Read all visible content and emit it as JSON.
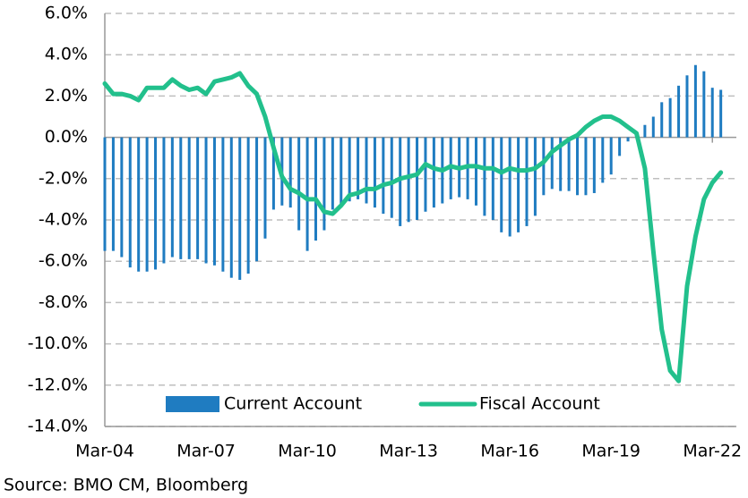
{
  "chart_data": {
    "type": "bar-line",
    "categories": [
      "Mar-04",
      null,
      null,
      null,
      null,
      null,
      null,
      null,
      null,
      null,
      null,
      null,
      "Mar-07",
      null,
      null,
      null,
      null,
      null,
      null,
      null,
      null,
      null,
      null,
      null,
      "Mar-10",
      null,
      null,
      null,
      null,
      null,
      null,
      null,
      null,
      null,
      null,
      null,
      "Mar-13",
      null,
      null,
      null,
      null,
      null,
      null,
      null,
      null,
      null,
      null,
      null,
      "Mar-16",
      null,
      null,
      null,
      null,
      null,
      null,
      null,
      null,
      null,
      null,
      null,
      "Mar-19",
      null,
      null,
      null,
      null,
      null,
      null,
      null,
      null,
      null,
      null,
      null,
      "Mar-22",
      null
    ],
    "series": [
      {
        "name": "Current Account",
        "type": "bar",
        "color": "#1f7cc1",
        "values": [
          -5.5,
          -5.5,
          -5.8,
          -6.3,
          -6.5,
          -6.5,
          -6.4,
          -6.1,
          -5.8,
          -5.9,
          -5.9,
          -5.9,
          -6.1,
          -6.2,
          -6.5,
          -6.8,
          -6.9,
          -6.6,
          -6.0,
          -4.9,
          -3.5,
          -3.3,
          -3.4,
          -4.5,
          -5.5,
          -5.0,
          -4.5,
          -3.5,
          -3.3,
          -3.1,
          -3.0,
          -3.2,
          -3.4,
          -3.7,
          -3.9,
          -4.3,
          -4.1,
          -4.0,
          -3.6,
          -3.4,
          -3.2,
          -3.0,
          -2.9,
          -3.0,
          -3.3,
          -3.8,
          -4.0,
          -4.6,
          -4.8,
          -4.6,
          -4.3,
          -3.8,
          -2.8,
          -2.5,
          -2.6,
          -2.6,
          -2.8,
          -2.8,
          -2.7,
          -2.2,
          -1.8,
          -0.9,
          -0.2,
          0.1,
          0.6,
          1.0,
          1.7,
          1.9,
          2.5,
          3.0,
          3.5,
          3.2,
          2.4,
          2.3
        ]
      },
      {
        "name": "Fiscal Account",
        "type": "line",
        "color": "#22c08c",
        "values": [
          2.6,
          2.1,
          2.1,
          2.0,
          1.8,
          2.4,
          2.4,
          2.4,
          2.8,
          2.5,
          2.3,
          2.4,
          2.1,
          2.7,
          2.8,
          2.9,
          3.1,
          2.5,
          2.1,
          1.0,
          -0.5,
          -1.9,
          -2.5,
          -2.7,
          -3.0,
          -3.0,
          -3.6,
          -3.7,
          -3.3,
          -2.8,
          -2.7,
          -2.5,
          -2.5,
          -2.3,
          -2.2,
          -2.0,
          -1.9,
          -1.8,
          -1.3,
          -1.5,
          -1.6,
          -1.4,
          -1.5,
          -1.4,
          -1.4,
          -1.5,
          -1.5,
          -1.7,
          -1.5,
          -1.6,
          -1.6,
          -1.5,
          -1.2,
          -0.7,
          -0.4,
          -0.1,
          0.1,
          0.5,
          0.8,
          1.0,
          1.0,
          0.8,
          0.5,
          0.2,
          -1.5,
          -5.5,
          -9.3,
          -11.3,
          -11.8,
          -7.2,
          -4.8,
          -3.0,
          -2.2,
          -1.7
        ]
      }
    ],
    "ylim": [
      -14,
      6
    ],
    "yticks": [
      {
        "value": 6,
        "label": "6.0%"
      },
      {
        "value": 4,
        "label": "4.0%"
      },
      {
        "value": 2,
        "label": "2.0%"
      },
      {
        "value": 0,
        "label": "0.0%"
      },
      {
        "value": -2,
        "label": "-2.0%"
      },
      {
        "value": -4,
        "label": "-4.0%"
      },
      {
        "value": -6,
        "label": "-6.0%"
      },
      {
        "value": -8,
        "label": "-8.0%"
      },
      {
        "value": -10,
        "label": "-10.0%"
      },
      {
        "value": -12,
        "label": "-12.0%"
      },
      {
        "value": -14,
        "label": "-14.0%"
      }
    ],
    "grid": true,
    "legend": "bottom",
    "source": "Source: BMO CM, Bloomberg"
  }
}
